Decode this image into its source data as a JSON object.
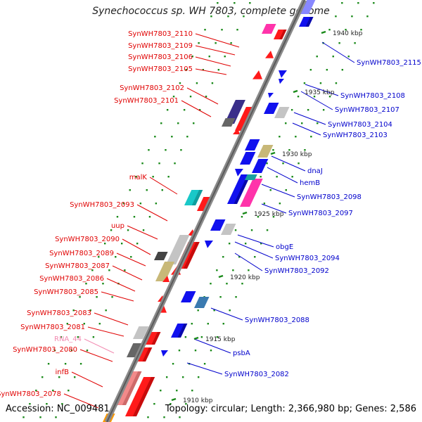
{
  "header": {
    "title": "Synechococcus sp. WH 7803, complete genome"
  },
  "footer": {
    "accession": "Accession: NC_009481",
    "summary": "Topology: circular; Length: 2,366,980 bp; Genes: 2,586"
  },
  "colors": {
    "forward_label": "#e00000",
    "reverse_label": "#0000cc",
    "rna_label": "#f28ab0",
    "axis_outer": "#888888",
    "axis_inner": "#555555",
    "tick": "#1a8a1a"
  },
  "scale": [
    {
      "label": "1940 kbp"
    },
    {
      "label": "1935 kbp"
    },
    {
      "label": "1930 kbp"
    },
    {
      "label": "1925 kbp"
    },
    {
      "label": "1920 kbp"
    },
    {
      "label": "1915 kbp"
    },
    {
      "label": "1910 kbp"
    }
  ],
  "left_labels": [
    {
      "text": "SynWH7803_2110",
      "type": "cds"
    },
    {
      "text": "SynWH7803_2109",
      "type": "cds"
    },
    {
      "text": "SynWH7803_2106",
      "type": "cds"
    },
    {
      "text": "SynWH7803_2105",
      "type": "cds"
    },
    {
      "text": "SynWH7803_2102",
      "type": "cds"
    },
    {
      "text": "SynWH7803_2101",
      "type": "cds"
    },
    {
      "text": "malK",
      "type": "cds"
    },
    {
      "text": "SynWH7803_2093",
      "type": "cds"
    },
    {
      "text": "uup",
      "type": "cds"
    },
    {
      "text": "SynWH7803_2090",
      "type": "cds"
    },
    {
      "text": "SynWH7803_2089",
      "type": "cds"
    },
    {
      "text": "SynWH7803_2087",
      "type": "cds"
    },
    {
      "text": "SynWH7803_2086",
      "type": "cds"
    },
    {
      "text": "SynWH7803_2085",
      "type": "cds"
    },
    {
      "text": "SynWH7803_2083",
      "type": "cds"
    },
    {
      "text": "SynWH7803_2081",
      "type": "cds"
    },
    {
      "text": "RNA_44",
      "type": "rna"
    },
    {
      "text": "SynWH7803_2080",
      "type": "cds"
    },
    {
      "text": "infB",
      "type": "cds"
    },
    {
      "text": "SynWH7803_2078",
      "type": "cds"
    }
  ],
  "right_labels": [
    {
      "text": "SynWH7803_2115"
    },
    {
      "text": "SynWH7803_2108"
    },
    {
      "text": "SynWH7803_2107"
    },
    {
      "text": "SynWH7803_2104"
    },
    {
      "text": "SynWH7803_2103"
    },
    {
      "text": "dnaJ"
    },
    {
      "text": "hemB"
    },
    {
      "text": "SynWH7803_2098"
    },
    {
      "text": "SynWH7803_2097"
    },
    {
      "text": "obgE"
    },
    {
      "text": "SynWH7803_2094"
    },
    {
      "text": "SynWH7803_2092"
    },
    {
      "text": "SynWH7803_2088"
    },
    {
      "text": "psbA"
    },
    {
      "text": "SynWH7803_2082"
    }
  ]
}
